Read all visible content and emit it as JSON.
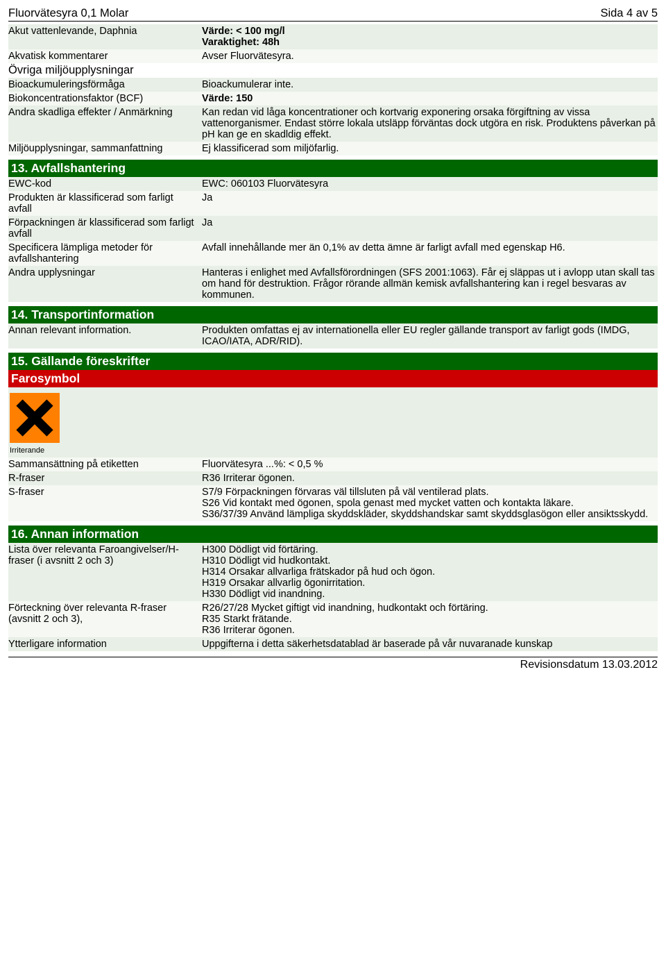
{
  "header": {
    "left": "Fluorvätesyra 0,1 Molar",
    "right": "Sida 4 av 5"
  },
  "top_rows": [
    {
      "label": "Akut vattenlevande, Daphnia",
      "lines": [
        {
          "t": "Värde: < 100 mg/l",
          "b": true
        },
        {
          "t": "Varaktighet: 48h",
          "b": true
        }
      ]
    },
    {
      "label": "Akvatisk kommentarer",
      "lines": [
        {
          "t": "Avser Fluorvätesyra."
        }
      ]
    }
  ],
  "top_sub": "Övriga miljöupplysningar",
  "top_rows2": [
    {
      "label": "Bioackumuleringsförmåga",
      "lines": [
        {
          "t": "Bioackumulerar inte."
        }
      ]
    },
    {
      "label": "Biokoncentrationsfaktor (BCF)",
      "lines": [
        {
          "t": "Värde: 150",
          "b": true
        }
      ]
    },
    {
      "label": "Andra skadliga effekter / Anmärkning",
      "lines": [
        {
          "t": "Kan redan vid låga koncentrationer och kortvarig exponering orsaka förgiftning av vissa vattenorganismer. Endast större lokala utsläpp förväntas dock utgöra en risk. Produktens påverkan på pH kan ge en skadldig effekt."
        }
      ]
    },
    {
      "label": "Miljöupplysningar, sammanfattning",
      "lines": [
        {
          "t": "Ej klassificerad som miljöfarlig."
        }
      ]
    }
  ],
  "s13": {
    "title": "13. Avfallshantering",
    "rows": [
      {
        "label": "EWC-kod",
        "lines": [
          {
            "t": "EWC: 060103 Fluorvätesyra"
          }
        ]
      },
      {
        "label": "Produkten är klassificerad som farligt avfall",
        "lines": [
          {
            "t": "Ja"
          }
        ]
      },
      {
        "label": "Förpackningen är klassificerad som farligt avfall",
        "lines": [
          {
            "t": "Ja"
          }
        ]
      },
      {
        "label": "Specificera lämpliga metoder för avfallshantering",
        "lines": [
          {
            "t": "Avfall innehållande mer än 0,1% av detta ämne är farligt avfall med egenskap H6."
          }
        ]
      },
      {
        "label": "Andra upplysningar",
        "lines": [
          {
            "t": "Hanteras i enlighet med Avfallsförordningen (SFS 2001:1063). Får ej släppas ut i avlopp utan skall tas om hand för destruktion. Frågor rörande allmän kemisk avfallshantering kan i regel besvaras av kommunen."
          }
        ]
      }
    ]
  },
  "s14": {
    "title": "14. Transportinformation",
    "rows": [
      {
        "label": "Annan relevant information.",
        "lines": [
          {
            "t": "Produkten omfattas ej av internationella eller EU regler gällande transport av farligt gods (IMDG, ICAO/IATA, ADR/RID)."
          }
        ]
      }
    ]
  },
  "s15": {
    "title": "15. Gällande föreskrifter",
    "sub": "Farosymbol",
    "hazard_caption": "Irriterande",
    "rows": [
      {
        "label": "Sammansättning på etiketten",
        "lines": [
          {
            "t": "Fluorvätesyra ...%: < 0,5 %"
          }
        ]
      },
      {
        "label": "R-fraser",
        "lines": [
          {
            "t": "R36 Irriterar ögonen."
          }
        ]
      },
      {
        "label": "S-fraser",
        "lines": [
          {
            "t": "S7/9 Förpackningen förvaras väl tillsluten på väl ventilerad plats."
          },
          {
            "t": "S26 Vid kontakt med ögonen, spola genast med mycket vatten och kontakta läkare."
          },
          {
            "t": "S36/37/39 Använd lämpliga skyddskläder, skyddshandskar samt skyddsglasögon eller ansiktsskydd."
          }
        ]
      }
    ]
  },
  "s16": {
    "title": "16. Annan information",
    "rows": [
      {
        "label": "Lista över relevanta Faroangivelser/H-fraser (i avsnitt 2 och 3)",
        "lines": [
          {
            "t": "H300 Dödligt vid förtäring."
          },
          {
            "t": "H310 Dödligt vid hudkontakt."
          },
          {
            "t": "H314 Orsakar allvarliga frätskador på hud och ögon."
          },
          {
            "t": "H319 Orsakar allvarlig ögonirritation."
          },
          {
            "t": "H330 Dödligt vid inandning."
          }
        ]
      },
      {
        "label": "Förteckning över relevanta R-fraser (avsnitt 2 och 3),",
        "lines": [
          {
            "t": "R26/27/28 Mycket giftigt vid inandning, hudkontakt och förtäring."
          },
          {
            "t": "R35 Starkt frätande."
          },
          {
            "t": "R36 Irriterar ögonen."
          }
        ]
      },
      {
        "label": "Ytterligare information",
        "lines": [
          {
            "t": "Uppgifterna i detta säkerhetsdatablad är baserade på vår nuvaranade kunskap"
          }
        ]
      }
    ]
  },
  "footer": "Revisionsdatum 13.03.2012",
  "colors": {
    "green": "#006600",
    "red": "#cc0000",
    "stripe0": "#e8efe6",
    "stripe1": "#f5f8f3",
    "hazard": "#ff7f00"
  }
}
